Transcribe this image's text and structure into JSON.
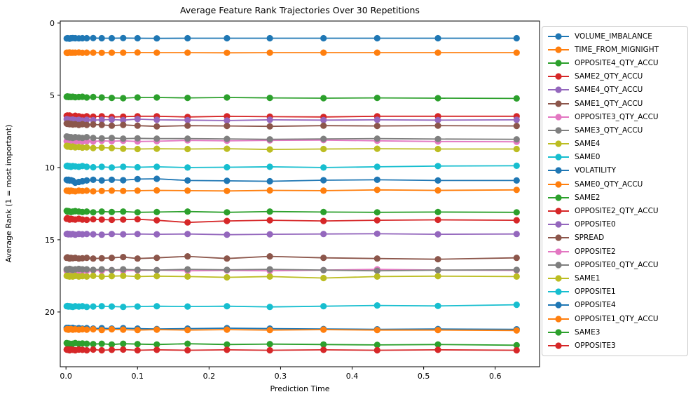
{
  "figure": {
    "background_color": "#ffffff",
    "axes_edge_color": "#000000"
  },
  "chart_data": {
    "type": "line",
    "title": "Average Feature Rank Trajectories Over 30 Repetitions",
    "xlabel": "Prediction Time",
    "ylabel": "Average Rank (1 = most important)",
    "grid": false,
    "legend_position": "outside-right",
    "marker": "circle",
    "y_axis_inverted": true,
    "xticks": [
      0.0,
      0.1,
      0.2,
      0.3,
      0.4,
      0.5,
      0.6
    ],
    "yticks": [
      0,
      5,
      10,
      15,
      20
    ],
    "xlim": [
      -0.008,
      0.662
    ],
    "ylim": [
      23.79,
      -0.14
    ],
    "x": [
      0.001,
      0.002,
      0.0035,
      0.005,
      0.007,
      0.0095,
      0.013,
      0.018,
      0.023,
      0.029,
      0.038,
      0.05,
      0.064,
      0.08,
      0.1,
      0.127,
      0.17,
      0.225,
      0.285,
      0.36,
      0.435,
      0.52,
      0.63
    ],
    "series": [
      {
        "name": "VOLUME_IMBALANCE",
        "color": "#1f77b4",
        "values": [
          1.07,
          1.05,
          1.06,
          1.08,
          1.05,
          1.04,
          1.05,
          1.06,
          1.05,
          1.05,
          1.04,
          1.05,
          1.05,
          1.04,
          1.05,
          1.06,
          1.05,
          1.05,
          1.05,
          1.05,
          1.05,
          1.05,
          1.05
        ]
      },
      {
        "name": "TIME_FROM_MIGNIGHT",
        "color": "#ff7f0e",
        "values": [
          2.05,
          2.07,
          2.05,
          2.04,
          2.06,
          2.05,
          2.05,
          2.04,
          2.06,
          2.05,
          2.05,
          2.06,
          2.05,
          2.05,
          2.04,
          2.05,
          2.05,
          2.06,
          2.05,
          2.05,
          2.05,
          2.05,
          2.05
        ]
      },
      {
        "name": "OPPOSITE4_QTY_ACCU",
        "color": "#2ca02c",
        "values": [
          5.1,
          5.08,
          5.12,
          5.1,
          5.12,
          5.1,
          5.13,
          5.12,
          5.1,
          5.15,
          5.12,
          5.15,
          5.18,
          5.2,
          5.15,
          5.15,
          5.18,
          5.15,
          5.18,
          5.2,
          5.18,
          5.2,
          5.22
        ]
      },
      {
        "name": "SAME2_QTY_ACCU",
        "color": "#d62728",
        "values": [
          6.42,
          6.4,
          6.45,
          6.4,
          6.45,
          6.48,
          6.42,
          6.45,
          6.5,
          6.45,
          6.48,
          6.45,
          6.5,
          6.48,
          6.45,
          6.45,
          6.5,
          6.45,
          6.48,
          6.5,
          6.45,
          6.45,
          6.45
        ]
      },
      {
        "name": "SAME4_QTY_ACCU",
        "color": "#9467bd",
        "values": [
          6.65,
          6.7,
          6.68,
          6.72,
          6.7,
          6.68,
          6.72,
          6.7,
          6.75,
          6.7,
          6.72,
          6.7,
          6.68,
          6.72,
          6.65,
          6.7,
          6.72,
          6.75,
          6.7,
          6.72,
          6.7,
          6.72,
          6.7
        ]
      },
      {
        "name": "SAME1_QTY_ACCU",
        "color": "#8c564b",
        "values": [
          6.95,
          6.98,
          6.95,
          7.0,
          6.98,
          7.02,
          7.0,
          7.05,
          7.0,
          7.05,
          7.02,
          7.05,
          7.1,
          7.05,
          7.1,
          7.15,
          7.1,
          7.12,
          7.15,
          7.1,
          7.12,
          7.1,
          7.12
        ]
      },
      {
        "name": "OPPOSITE3_QTY_ACCU",
        "color": "#e377c2",
        "values": [
          8.18,
          8.2,
          8.15,
          8.2,
          8.22,
          8.18,
          8.2,
          8.15,
          8.2,
          8.18,
          8.2,
          8.15,
          8.18,
          8.15,
          8.2,
          8.18,
          8.12,
          8.15,
          8.12,
          8.1,
          8.15,
          8.2,
          8.22
        ]
      },
      {
        "name": "SAME3_QTY_ACCU",
        "color": "#7f7f7f",
        "values": [
          7.85,
          7.9,
          7.88,
          7.92,
          7.9,
          7.95,
          7.9,
          7.92,
          7.95,
          7.9,
          7.95,
          7.98,
          7.95,
          8.0,
          7.98,
          8.0,
          8.0,
          8.02,
          8.05,
          8.02,
          8.0,
          8.03,
          8.05
        ]
      },
      {
        "name": "SAME4",
        "color": "#bcbd22",
        "values": [
          8.5,
          8.55,
          8.52,
          8.55,
          8.58,
          8.55,
          8.6,
          8.58,
          8.62,
          8.6,
          8.65,
          8.62,
          8.65,
          8.7,
          8.72,
          8.7,
          8.72,
          8.7,
          8.75,
          8.72,
          8.7,
          8.72,
          8.72
        ]
      },
      {
        "name": "SAME0",
        "color": "#17becf",
        "values": [
          9.9,
          9.88,
          9.92,
          9.9,
          9.95,
          9.9,
          9.92,
          9.95,
          9.9,
          9.95,
          9.98,
          9.95,
          10.0,
          9.95,
          9.98,
          9.95,
          10.0,
          9.98,
          9.95,
          10.0,
          9.95,
          9.9,
          9.88
        ]
      },
      {
        "name": "VOLATILITY",
        "color": "#1f77b4",
        "values": [
          10.85,
          10.88,
          10.85,
          10.9,
          10.88,
          10.92,
          11.05,
          11.0,
          10.95,
          10.9,
          10.85,
          10.9,
          10.85,
          10.88,
          10.8,
          10.78,
          10.9,
          10.92,
          10.95,
          10.88,
          10.85,
          10.9,
          10.9
        ]
      },
      {
        "name": "SAME0_QTY_ACCU",
        "color": "#ff7f0e",
        "values": [
          11.6,
          11.62,
          11.6,
          11.65,
          11.6,
          11.62,
          11.65,
          11.6,
          11.62,
          11.6,
          11.65,
          11.62,
          11.6,
          11.62,
          11.6,
          11.58,
          11.6,
          11.62,
          11.58,
          11.6,
          11.55,
          11.58,
          11.55
        ]
      },
      {
        "name": "SAME2",
        "color": "#2ca02c",
        "values": [
          13.0,
          13.05,
          13.02,
          13.05,
          13.08,
          13.05,
          13.02,
          13.05,
          13.08,
          13.05,
          13.1,
          13.05,
          13.08,
          13.05,
          13.1,
          13.08,
          13.05,
          13.1,
          13.05,
          13.08,
          13.1,
          13.08,
          13.1
        ]
      },
      {
        "name": "OPPOSITE2_QTY_ACCU",
        "color": "#d62728",
        "values": [
          13.55,
          13.5,
          13.55,
          13.6,
          13.55,
          13.58,
          13.6,
          13.55,
          13.6,
          13.62,
          13.58,
          13.6,
          13.62,
          13.6,
          13.58,
          13.65,
          13.8,
          13.7,
          13.65,
          13.7,
          13.65,
          13.62,
          13.65
        ]
      },
      {
        "name": "OPPOSITE0",
        "color": "#9467bd",
        "values": [
          14.6,
          14.58,
          14.62,
          14.6,
          14.62,
          14.6,
          14.65,
          14.6,
          14.62,
          14.6,
          14.62,
          14.65,
          14.6,
          14.62,
          14.6,
          14.62,
          14.6,
          14.65,
          14.62,
          14.6,
          14.58,
          14.62,
          14.6
        ]
      },
      {
        "name": "SPREAD",
        "color": "#8c564b",
        "values": [
          16.25,
          16.22,
          16.25,
          16.3,
          16.25,
          16.28,
          16.25,
          16.3,
          16.28,
          16.25,
          16.3,
          16.28,
          16.25,
          16.2,
          16.3,
          16.25,
          16.15,
          16.3,
          16.15,
          16.25,
          16.3,
          16.35,
          16.25
        ]
      },
      {
        "name": "OPPOSITE2",
        "color": "#e377c2",
        "values": [
          17.15,
          17.12,
          17.15,
          17.18,
          17.15,
          17.12,
          17.15,
          17.18,
          17.15,
          17.15,
          17.12,
          17.15,
          17.1,
          17.15,
          17.12,
          17.1,
          17.15,
          17.12,
          17.15,
          17.1,
          17.05,
          17.1,
          17.12
        ]
      },
      {
        "name": "OPPOSITE0_QTY_ACCU",
        "color": "#7f7f7f",
        "values": [
          17.05,
          17.08,
          17.05,
          17.02,
          17.05,
          17.08,
          17.05,
          17.02,
          17.05,
          17.05,
          17.08,
          17.05,
          17.1,
          17.05,
          17.08,
          17.1,
          17.05,
          17.08,
          17.05,
          17.1,
          17.15,
          17.1,
          17.08
        ]
      },
      {
        "name": "SAME1",
        "color": "#bcbd22",
        "values": [
          17.5,
          17.52,
          17.5,
          17.55,
          17.52,
          17.55,
          17.5,
          17.55,
          17.52,
          17.55,
          17.5,
          17.55,
          17.52,
          17.5,
          17.55,
          17.52,
          17.55,
          17.6,
          17.55,
          17.65,
          17.55,
          17.52,
          17.55
        ]
      },
      {
        "name": "OPPOSITE1",
        "color": "#17becf",
        "values": [
          19.6,
          19.58,
          19.62,
          19.6,
          19.62,
          19.65,
          19.6,
          19.62,
          19.6,
          19.65,
          19.62,
          19.6,
          19.62,
          19.65,
          19.62,
          19.6,
          19.62,
          19.6,
          19.65,
          19.6,
          19.55,
          19.58,
          19.5
        ]
      },
      {
        "name": "OPPOSITE4",
        "color": "#1f77b4",
        "values": [
          21.1,
          21.12,
          21.1,
          21.15,
          21.12,
          21.1,
          21.15,
          21.12,
          21.15,
          21.12,
          21.15,
          21.12,
          21.15,
          21.12,
          21.15,
          21.18,
          21.15,
          21.12,
          21.15,
          21.18,
          21.2,
          21.18,
          21.2
        ]
      },
      {
        "name": "OPPOSITE1_QTY_ACCU",
        "color": "#ff7f0e",
        "values": [
          21.2,
          21.18,
          21.22,
          21.2,
          21.18,
          21.22,
          21.2,
          21.22,
          21.2,
          21.22,
          21.2,
          21.25,
          21.2,
          21.22,
          21.25,
          21.22,
          21.25,
          21.22,
          21.25,
          21.22,
          21.25,
          21.25,
          21.28
        ]
      },
      {
        "name": "SAME3",
        "color": "#2ca02c",
        "values": [
          22.15,
          22.2,
          22.18,
          22.2,
          22.22,
          22.2,
          22.15,
          22.2,
          22.18,
          22.2,
          22.22,
          22.2,
          22.25,
          22.2,
          22.22,
          22.25,
          22.2,
          22.25,
          22.22,
          22.25,
          22.28,
          22.25,
          22.3
        ]
      },
      {
        "name": "OPPOSITE3",
        "color": "#d62728",
        "values": [
          22.6,
          22.62,
          22.6,
          22.65,
          22.6,
          22.62,
          22.65,
          22.6,
          22.62,
          22.65,
          22.6,
          22.65,
          22.62,
          22.6,
          22.65,
          22.62,
          22.65,
          22.62,
          22.65,
          22.62,
          22.65,
          22.62,
          22.65
        ]
      }
    ]
  }
}
